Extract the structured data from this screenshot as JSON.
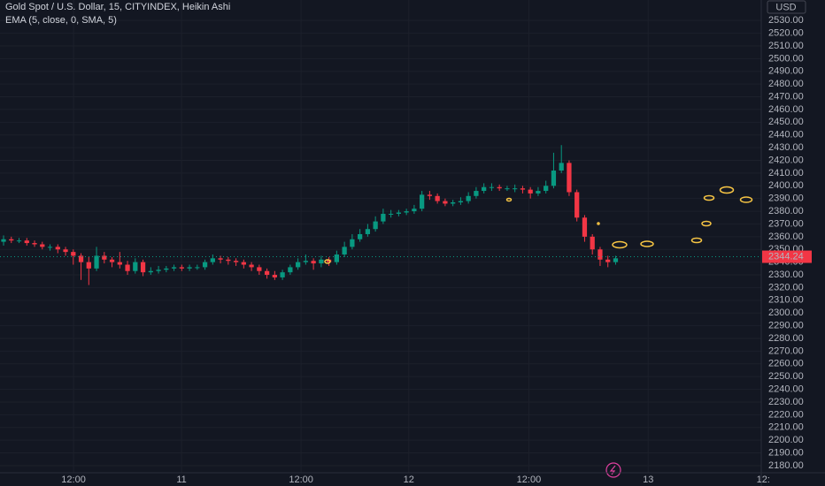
{
  "chart_data": {
    "type": "candlestick",
    "title": "Gold Spot / U.S. Dollar, 15, CITYINDEX, Heikin Ashi",
    "subtitle": "EMA (5, close, 0, SMA, 5)",
    "currency": "USD",
    "up_color": "#089981",
    "down_color": "#f23645",
    "candles": [
      [
        2356,
        2361,
        2353,
        2358
      ],
      [
        2358,
        2360,
        2355,
        2357
      ],
      [
        2357,
        2359,
        2355,
        2357
      ],
      [
        2357,
        2359,
        2353,
        2355
      ],
      [
        2355,
        2357,
        2352,
        2354
      ],
      [
        2354,
        2356,
        2350,
        2352
      ],
      [
        2352,
        2354,
        2349,
        2352
      ],
      [
        2352,
        2354,
        2347,
        2350
      ],
      [
        2350,
        2352,
        2345,
        2348
      ],
      [
        2348,
        2350,
        2338,
        2345
      ],
      [
        2345,
        2347,
        2326,
        2340
      ],
      [
        2340,
        2344,
        2322,
        2335
      ],
      [
        2335,
        2352,
        2333,
        2345
      ],
      [
        2345,
        2348,
        2339,
        2342
      ],
      [
        2342,
        2344,
        2336,
        2340
      ],
      [
        2340,
        2348,
        2335,
        2338
      ],
      [
        2338,
        2341,
        2330,
        2333
      ],
      [
        2333,
        2343,
        2331,
        2340
      ],
      [
        2340,
        2342,
        2329,
        2332
      ],
      [
        2332,
        2336,
        2330,
        2333
      ],
      [
        2333,
        2337,
        2331,
        2334
      ],
      [
        2334,
        2337,
        2332,
        2335
      ],
      [
        2335,
        2338,
        2333,
        2336
      ],
      [
        2336,
        2338,
        2333,
        2335
      ],
      [
        2335,
        2338,
        2333,
        2336
      ],
      [
        2336,
        2338,
        2334,
        2336
      ],
      [
        2336,
        2342,
        2334,
        2340
      ],
      [
        2340,
        2346,
        2338,
        2343
      ],
      [
        2343,
        2345,
        2339,
        2342
      ],
      [
        2342,
        2344,
        2338,
        2341
      ],
      [
        2341,
        2343,
        2337,
        2340
      ],
      [
        2340,
        2342,
        2335,
        2338
      ],
      [
        2338,
        2340,
        2333,
        2336
      ],
      [
        2336,
        2338,
        2330,
        2333
      ],
      [
        2333,
        2335,
        2327,
        2330
      ],
      [
        2330,
        2333,
        2326,
        2328
      ],
      [
        2328,
        2334,
        2326,
        2332
      ],
      [
        2332,
        2338,
        2330,
        2336
      ],
      [
        2336,
        2343,
        2334,
        2340
      ],
      [
        2340,
        2346,
        2338,
        2341
      ],
      [
        2341,
        2343,
        2334,
        2339
      ],
      [
        2339,
        2345,
        2336,
        2342
      ],
      [
        2342,
        2344,
        2337,
        2340
      ],
      [
        2340,
        2349,
        2338,
        2346
      ],
      [
        2346,
        2356,
        2344,
        2352
      ],
      [
        2352,
        2362,
        2350,
        2358
      ],
      [
        2358,
        2366,
        2356,
        2362
      ],
      [
        2362,
        2370,
        2360,
        2366
      ],
      [
        2366,
        2376,
        2364,
        2372
      ],
      [
        2372,
        2382,
        2370,
        2378
      ],
      [
        2378,
        2381,
        2375,
        2378
      ],
      [
        2378,
        2381,
        2376,
        2379
      ],
      [
        2379,
        2382,
        2377,
        2380
      ],
      [
        2380,
        2385,
        2378,
        2382
      ],
      [
        2382,
        2396,
        2380,
        2393
      ],
      [
        2393,
        2396,
        2389,
        2392
      ],
      [
        2392,
        2394,
        2386,
        2388
      ],
      [
        2388,
        2390,
        2384,
        2386
      ],
      [
        2386,
        2389,
        2384,
        2387
      ],
      [
        2387,
        2391,
        2385,
        2388
      ],
      [
        2388,
        2395,
        2386,
        2392
      ],
      [
        2392,
        2399,
        2390,
        2396
      ],
      [
        2396,
        2402,
        2394,
        2399
      ],
      [
        2399,
        2402,
        2396,
        2399
      ],
      [
        2399,
        2401,
        2396,
        2398
      ],
      [
        2398,
        2400,
        2396,
        2398
      ],
      [
        2398,
        2401,
        2395,
        2398
      ],
      [
        2398,
        2400,
        2394,
        2397
      ],
      [
        2397,
        2399,
        2390,
        2394
      ],
      [
        2394,
        2399,
        2392,
        2396
      ],
      [
        2396,
        2404,
        2394,
        2400
      ],
      [
        2400,
        2426,
        2398,
        2412
      ],
      [
        2412,
        2432,
        2410,
        2418
      ],
      [
        2418,
        2420,
        2392,
        2395
      ],
      [
        2395,
        2397,
        2372,
        2375
      ],
      [
        2375,
        2377,
        2356,
        2360
      ],
      [
        2360,
        2362,
        2346,
        2350
      ],
      [
        2350,
        2352,
        2337,
        2342
      ],
      [
        2342,
        2345,
        2336,
        2340
      ],
      [
        2340,
        2345,
        2338,
        2343
      ]
    ],
    "current_price": {
      "value": 2344.24,
      "label": "2344.24"
    },
    "xlim": [
      -0.46,
      97.8
    ],
    "xticks": [
      {
        "value": 9.03,
        "label": "12:00"
      },
      {
        "value": 22.97,
        "label": "11"
      },
      {
        "value": 38.4,
        "label": "12:00"
      },
      {
        "value": 52.3,
        "label": "12"
      },
      {
        "value": 67.8,
        "label": "12:00"
      },
      {
        "value": 83.2,
        "label": "13"
      },
      {
        "value": 98.06,
        "label": "12:"
      }
    ],
    "ylim": [
      2174.4,
      2546.1
    ],
    "yticks": [
      {
        "value": 2530,
        "label": "2530.00"
      },
      {
        "value": 2520,
        "label": "2520.00"
      },
      {
        "value": 2510,
        "label": "2510.00"
      },
      {
        "value": 2500,
        "label": "2500.00"
      },
      {
        "value": 2490,
        "label": "2490.00"
      },
      {
        "value": 2480,
        "label": "2480.00"
      },
      {
        "value": 2470,
        "label": "2470.00"
      },
      {
        "value": 2460,
        "label": "2460.00"
      },
      {
        "value": 2450,
        "label": "2450.00"
      },
      {
        "value": 2440,
        "label": "2440.00"
      },
      {
        "value": 2430,
        "label": "2430.00"
      },
      {
        "value": 2420,
        "label": "2420.00"
      },
      {
        "value": 2410,
        "label": "2410.00"
      },
      {
        "value": 2400,
        "label": "2400.00"
      },
      {
        "value": 2390,
        "label": "2390.00"
      },
      {
        "value": 2380,
        "label": "2380.00"
      },
      {
        "value": 2370,
        "label": "2370.00"
      },
      {
        "value": 2360,
        "label": "2360.00"
      },
      {
        "value": 2350,
        "label": "2350.00"
      },
      {
        "value": 2340,
        "label": "2340.00"
      },
      {
        "value": 2330,
        "label": "2330.00"
      },
      {
        "value": 2320,
        "label": "2320.00"
      },
      {
        "value": 2310,
        "label": "2310.00"
      },
      {
        "value": 2300,
        "label": "2300.00"
      },
      {
        "value": 2290,
        "label": "2290.00"
      },
      {
        "value": 2280,
        "label": "2280.00"
      },
      {
        "value": 2270,
        "label": "2270.00"
      },
      {
        "value": 2260,
        "label": "2260.00"
      },
      {
        "value": 2250,
        "label": "2250.00"
      },
      {
        "value": 2240,
        "label": "2240.00"
      },
      {
        "value": 2230,
        "label": "2230.00"
      },
      {
        "value": 2220,
        "label": "2220.00"
      },
      {
        "value": 2210,
        "label": "2210.00"
      },
      {
        "value": 2200,
        "label": "2200.00"
      },
      {
        "value": 2190,
        "label": "2190.00"
      },
      {
        "value": 2180,
        "label": "2180.00"
      }
    ],
    "grid": true
  }
}
